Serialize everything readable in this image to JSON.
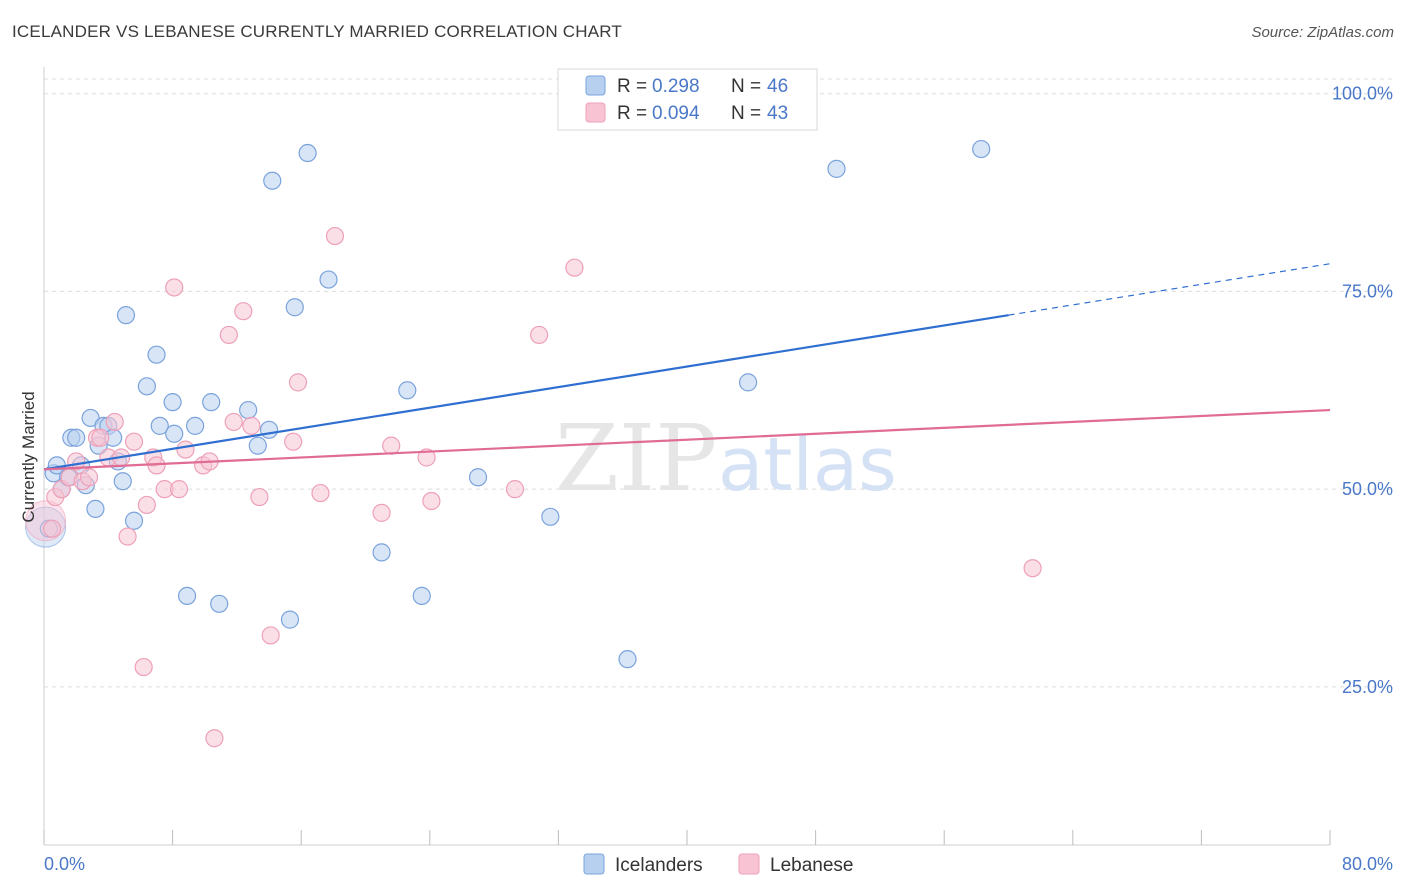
{
  "header": {
    "title": "ICELANDER VS LEBANESE CURRENTLY MARRIED CORRELATION CHART",
    "source": "Source: ZipAtlas.com"
  },
  "colors": {
    "blue": "#4a78c8",
    "blue_fill": "#b8d0f0",
    "blue_stroke": "#7aa3dc",
    "blue_line": "#2f6fd0",
    "pink": "#e06b95",
    "pink_fill": "#f8c4d4",
    "pink_stroke": "#eea0b8",
    "pink_line": "#e06b95",
    "grid": "#dcdcdc",
    "axis_text": "#4a78c8"
  },
  "chart_data": {
    "type": "scatter",
    "title": "ICELANDER VS LEBANESE CURRENTLY MARRIED CORRELATION CHART",
    "xlabel": "",
    "ylabel": "Currently Married",
    "xlim": [
      0,
      80
    ],
    "ylim": [
      5,
      103
    ],
    "x_tick_labels": [
      "0.0%",
      "80.0%"
    ],
    "y_ticks": [
      25,
      50,
      75,
      100
    ],
    "y_tick_labels": [
      "25.0%",
      "50.0%",
      "75.0%",
      "100.0%"
    ],
    "grid": true,
    "watermark": {
      "zip": "ZIP",
      "atlas": "atlas"
    },
    "legend": {
      "stats": [
        {
          "r_label": "R =",
          "r_value": "0.298",
          "n_label": "N =",
          "n_value": "46"
        },
        {
          "r_label": "R =",
          "r_value": "0.094",
          "n_label": "N =",
          "n_value": "43"
        }
      ],
      "bottom": [
        "Icelanders",
        "Lebanese"
      ]
    },
    "series": [
      {
        "name": "Icelanders",
        "trend": {
          "x0": 0,
          "y0": 52.5,
          "x1": 60,
          "y1": 72.0,
          "dash_x1": 80,
          "dash_y1": 78.5
        },
        "points": [
          [
            0.3,
            45
          ],
          [
            0.6,
            52
          ],
          [
            0.8,
            53
          ],
          [
            1.1,
            50
          ],
          [
            1.5,
            51.5
          ],
          [
            1.7,
            56.5
          ],
          [
            2.0,
            56.5
          ],
          [
            2.3,
            53
          ],
          [
            2.6,
            50.5
          ],
          [
            2.9,
            59
          ],
          [
            3.2,
            47.5
          ],
          [
            3.4,
            55.5
          ],
          [
            3.7,
            58
          ],
          [
            4.0,
            58
          ],
          [
            4.3,
            56.5
          ],
          [
            4.6,
            53.5
          ],
          [
            4.9,
            51
          ],
          [
            5.1,
            72
          ],
          [
            5.6,
            46
          ],
          [
            6.4,
            63
          ],
          [
            7.0,
            67
          ],
          [
            7.2,
            58
          ],
          [
            8.0,
            61
          ],
          [
            8.1,
            57
          ],
          [
            8.9,
            36.5
          ],
          [
            9.4,
            58
          ],
          [
            10.4,
            61
          ],
          [
            10.9,
            35.5
          ],
          [
            12.7,
            60
          ],
          [
            13.3,
            55.5
          ],
          [
            14.0,
            57.5
          ],
          [
            14.2,
            89
          ],
          [
            15.3,
            33.5
          ],
          [
            15.6,
            73
          ],
          [
            16.4,
            92.5
          ],
          [
            17.7,
            76.5
          ],
          [
            21.0,
            42
          ],
          [
            22.6,
            62.5
          ],
          [
            23.5,
            36.5
          ],
          [
            27.0,
            51.5
          ],
          [
            31.5,
            46.5
          ],
          [
            36.3,
            28.5
          ],
          [
            43.8,
            63.5
          ],
          [
            49.3,
            90.5
          ],
          [
            58.3,
            93
          ]
        ],
        "big_point": [
          0.1,
          45.2
        ]
      },
      {
        "name": "Lebanese",
        "trend": {
          "x0": 0,
          "y0": 52.5,
          "x1": 80,
          "y1": 60.0
        },
        "points": [
          [
            0.5,
            45
          ],
          [
            0.7,
            49
          ],
          [
            1.1,
            50
          ],
          [
            1.6,
            51.5
          ],
          [
            2.0,
            53.5
          ],
          [
            2.4,
            51
          ],
          [
            2.8,
            51.5
          ],
          [
            3.3,
            56.5
          ],
          [
            3.5,
            56.5
          ],
          [
            4.0,
            54
          ],
          [
            4.4,
            58.5
          ],
          [
            4.8,
            54
          ],
          [
            5.2,
            44
          ],
          [
            5.6,
            56
          ],
          [
            6.2,
            27.5
          ],
          [
            6.4,
            48
          ],
          [
            6.8,
            54
          ],
          [
            7.0,
            53
          ],
          [
            7.5,
            50
          ],
          [
            8.1,
            75.5
          ],
          [
            8.4,
            50
          ],
          [
            8.8,
            55
          ],
          [
            9.9,
            53
          ],
          [
            10.3,
            53.5
          ],
          [
            10.6,
            18.5
          ],
          [
            11.5,
            69.5
          ],
          [
            11.8,
            58.5
          ],
          [
            12.4,
            72.5
          ],
          [
            12.9,
            58
          ],
          [
            13.4,
            49
          ],
          [
            14.1,
            31.5
          ],
          [
            15.5,
            56
          ],
          [
            15.8,
            63.5
          ],
          [
            17.2,
            49.5
          ],
          [
            18.1,
            82
          ],
          [
            21.0,
            47
          ],
          [
            21.6,
            55.5
          ],
          [
            23.8,
            54
          ],
          [
            24.1,
            48.5
          ],
          [
            29.3,
            50
          ],
          [
            30.8,
            69.5
          ],
          [
            33.0,
            78
          ],
          [
            61.5,
            40
          ]
        ],
        "big_point": [
          0.1,
          46.0
        ]
      }
    ]
  }
}
